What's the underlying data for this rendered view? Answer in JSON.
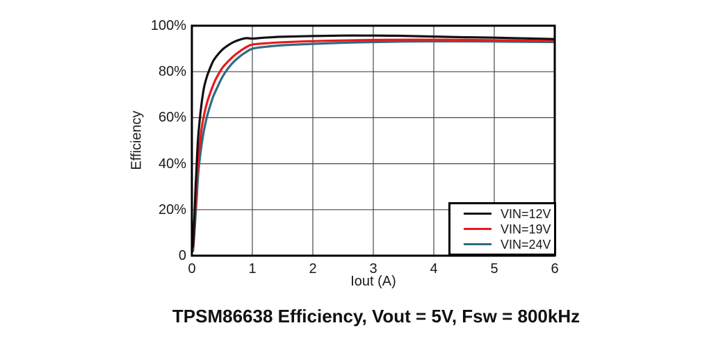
{
  "chart_data": {
    "type": "line",
    "title": "TPSM86638 Efficiency, Vout = 5V, Fsw = 800kHz",
    "xlabel": "Iout (A)",
    "ylabel": "Efficiency",
    "xlim": [
      0,
      6
    ],
    "ylim": [
      0,
      100
    ],
    "x_ticks": [
      {
        "v": 0,
        "label": "0"
      },
      {
        "v": 1,
        "label": "1"
      },
      {
        "v": 2,
        "label": "2"
      },
      {
        "v": 3,
        "label": "3"
      },
      {
        "v": 4,
        "label": "4"
      },
      {
        "v": 5,
        "label": "5"
      },
      {
        "v": 6,
        "label": "6"
      }
    ],
    "y_ticks": [
      {
        "v": 0,
        "label": "0"
      },
      {
        "v": 20,
        "label": "20%"
      },
      {
        "v": 40,
        "label": "40%"
      },
      {
        "v": 60,
        "label": "60%"
      },
      {
        "v": 80,
        "label": "80%"
      },
      {
        "v": 100,
        "label": "100%"
      }
    ],
    "grid": true,
    "legend_position": "bottom-right",
    "axis_color": "#000000",
    "grid_color": "#454545",
    "series": [
      {
        "name": "VIN=12V",
        "color": "#111111",
        "points": [
          [
            0.02,
            4
          ],
          [
            0.04,
            16
          ],
          [
            0.06,
            29
          ],
          [
            0.08,
            40
          ],
          [
            0.1,
            50
          ],
          [
            0.13,
            59
          ],
          [
            0.16,
            66
          ],
          [
            0.2,
            73
          ],
          [
            0.25,
            78
          ],
          [
            0.3,
            81.5
          ],
          [
            0.35,
            84.5
          ],
          [
            0.4,
            86.5
          ],
          [
            0.5,
            89.5
          ],
          [
            0.6,
            91.5
          ],
          [
            0.7,
            93.0
          ],
          [
            0.8,
            94.0
          ],
          [
            0.9,
            94.6
          ],
          [
            1.0,
            94.4
          ],
          [
            1.2,
            94.8
          ],
          [
            1.5,
            95.2
          ],
          [
            2.0,
            95.5
          ],
          [
            2.5,
            95.7
          ],
          [
            3.0,
            95.7
          ],
          [
            3.5,
            95.6
          ],
          [
            4.0,
            95.3
          ],
          [
            4.5,
            95.0
          ],
          [
            5.0,
            94.8
          ],
          [
            5.5,
            94.5
          ],
          [
            6.0,
            94.2
          ]
        ]
      },
      {
        "name": "VIN=19V",
        "color": "#e8191e",
        "points": [
          [
            0.02,
            3
          ],
          [
            0.04,
            12
          ],
          [
            0.06,
            22
          ],
          [
            0.08,
            31
          ],
          [
            0.1,
            40
          ],
          [
            0.13,
            48
          ],
          [
            0.16,
            55
          ],
          [
            0.2,
            61
          ],
          [
            0.25,
            66.5
          ],
          [
            0.3,
            70.5
          ],
          [
            0.35,
            74
          ],
          [
            0.4,
            77
          ],
          [
            0.5,
            81.5
          ],
          [
            0.6,
            84.5
          ],
          [
            0.7,
            87.0
          ],
          [
            0.8,
            89.0
          ],
          [
            0.9,
            90.7
          ],
          [
            1.0,
            91.8
          ],
          [
            1.2,
            92.3
          ],
          [
            1.5,
            92.8
          ],
          [
            2.0,
            93.3
          ],
          [
            2.5,
            93.6
          ],
          [
            3.0,
            93.8
          ],
          [
            3.5,
            93.9
          ],
          [
            4.0,
            93.9
          ],
          [
            4.5,
            93.8
          ],
          [
            5.0,
            93.7
          ],
          [
            5.5,
            93.5
          ],
          [
            6.0,
            93.4
          ]
        ]
      },
      {
        "name": "VIN=24V",
        "color": "#2e6c7f",
        "points": [
          [
            0.02,
            2
          ],
          [
            0.04,
            9
          ],
          [
            0.06,
            17
          ],
          [
            0.08,
            25
          ],
          [
            0.1,
            34
          ],
          [
            0.13,
            42
          ],
          [
            0.16,
            48
          ],
          [
            0.2,
            54.5
          ],
          [
            0.25,
            60.5
          ],
          [
            0.3,
            65
          ],
          [
            0.35,
            69
          ],
          [
            0.4,
            72
          ],
          [
            0.5,
            77.5
          ],
          [
            0.6,
            81.5
          ],
          [
            0.7,
            84.5
          ],
          [
            0.8,
            86.8
          ],
          [
            0.9,
            88.6
          ],
          [
            1.0,
            90.0
          ],
          [
            1.2,
            90.8
          ],
          [
            1.5,
            91.5
          ],
          [
            2.0,
            92.1
          ],
          [
            2.5,
            92.6
          ],
          [
            3.0,
            92.9
          ],
          [
            3.5,
            93.1
          ],
          [
            4.0,
            93.2
          ],
          [
            4.5,
            93.2
          ],
          [
            5.0,
            93.1
          ],
          [
            5.5,
            93.0
          ],
          [
            6.0,
            92.9
          ]
        ]
      }
    ]
  }
}
